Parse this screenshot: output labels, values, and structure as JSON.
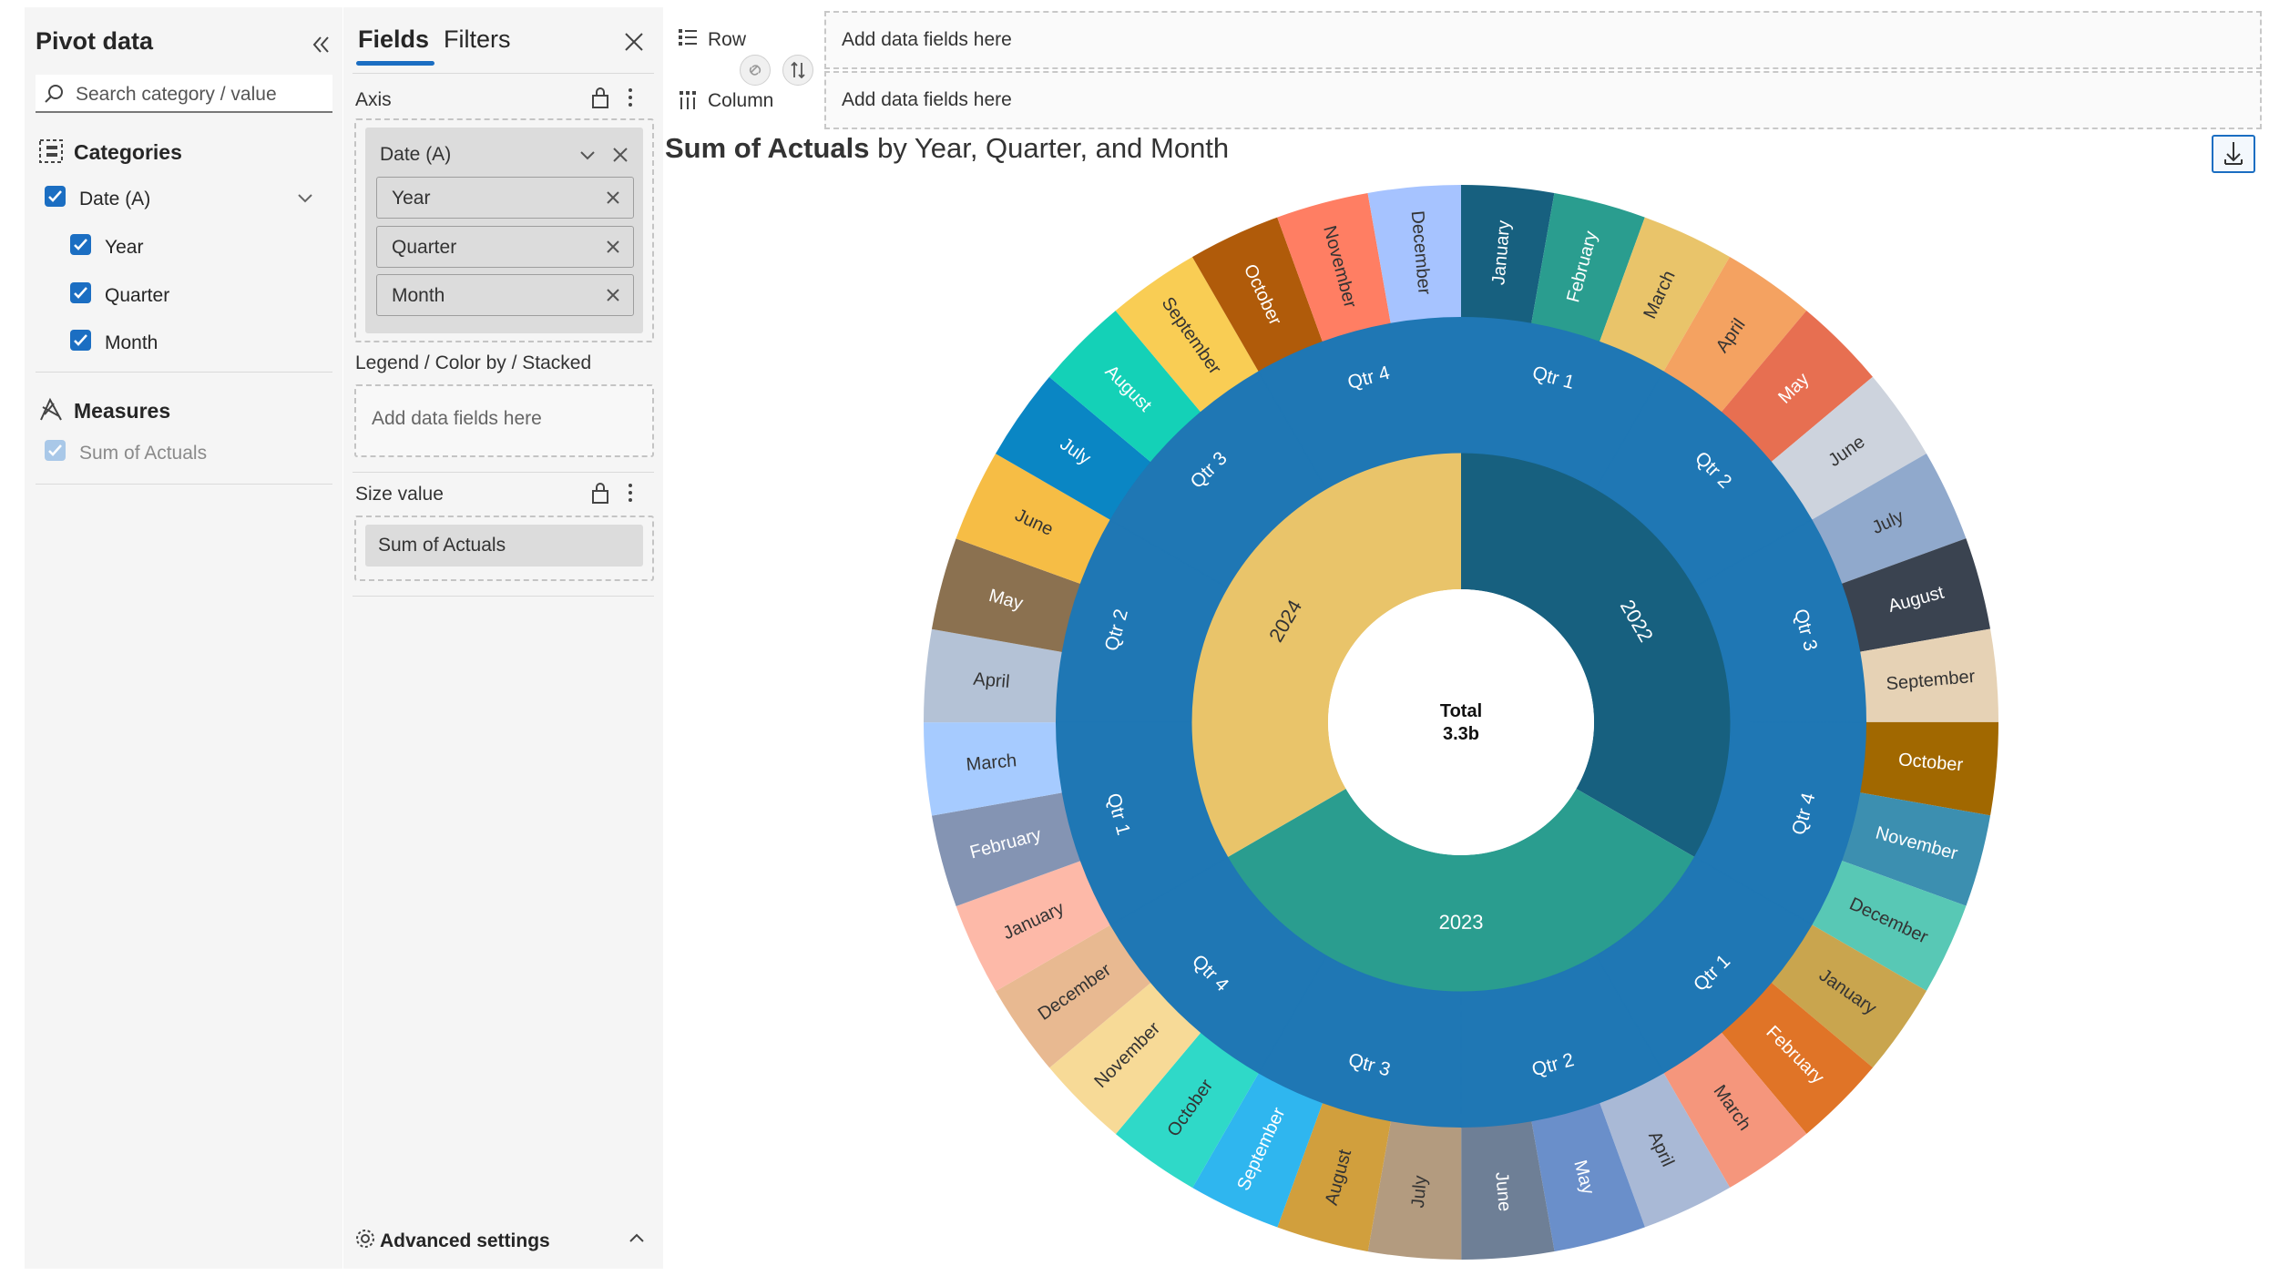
{
  "pivot_panel": {
    "title": "Pivot data",
    "search_placeholder": "Search category / value",
    "categories_heading": "Categories",
    "categories": [
      {
        "label": "Date (A)",
        "checked": true
      },
      {
        "label": "Year",
        "checked": true
      },
      {
        "label": "Quarter",
        "checked": true
      },
      {
        "label": "Month",
        "checked": true
      }
    ],
    "measures_heading": "Measures",
    "measures": [
      {
        "label": "Sum of Actuals",
        "checked": true,
        "disabled": true
      }
    ]
  },
  "fields_panel": {
    "tabs": [
      "Fields",
      "Filters"
    ],
    "active_tab": "Fields",
    "axis_label": "Axis",
    "axis_group": "Date (A)",
    "axis_fields": [
      "Year",
      "Quarter",
      "Month"
    ],
    "legend_label": "Legend / Color by / Stacked",
    "legend_placeholder": "Add data fields here",
    "size_label": "Size value",
    "size_field": "Sum of Actuals",
    "advanced_settings": "Advanced settings"
  },
  "wells": {
    "row_label": "Row",
    "row_placeholder": "Add data fields here",
    "column_label": "Column",
    "column_placeholder": "Add data fields here"
  },
  "colors": {
    "accent": "#1b6ec2",
    "quarter_ring": "#1f77b4"
  },
  "chart_data": {
    "type": "sunburst",
    "title_bold": "Sum of Actuals",
    "title_rest": " by Year, Quarter, and Month",
    "center_label": "Total",
    "center_value": "3.3b",
    "levels": [
      "Year",
      "Quarter",
      "Month"
    ],
    "years": [
      {
        "name": "2022",
        "color": "#17607f",
        "share": 0.3333,
        "quarters": [
          {
            "name": "Qtr 1",
            "months": [
              {
                "name": "January",
                "color": "#17607f",
                "value": 1
              },
              {
                "name": "February",
                "color": "#2a9d8f",
                "value": 1
              },
              {
                "name": "March",
                "color": "#e9c46a",
                "value": 1
              }
            ]
          },
          {
            "name": "Qtr 2",
            "months": [
              {
                "name": "April",
                "color": "#f4a261",
                "value": 1
              },
              {
                "name": "May",
                "color": "#e76f51",
                "value": 1
              },
              {
                "name": "June",
                "color": "#cdd3dd",
                "value": 1
              }
            ]
          },
          {
            "name": "Qtr 3",
            "months": [
              {
                "name": "July",
                "color": "#90a9cc",
                "value": 1
              },
              {
                "name": "August",
                "color": "#3a4350",
                "value": 1
              },
              {
                "name": "September",
                "color": "#e6d2b5",
                "value": 1
              }
            ]
          },
          {
            "name": "Qtr 4",
            "months": [
              {
                "name": "October",
                "color": "#a16800",
                "value": 1
              },
              {
                "name": "November",
                "color": "#3c8fb0",
                "value": 1
              },
              {
                "name": "December",
                "color": "#58c8b5",
                "value": 1
              }
            ]
          }
        ]
      },
      {
        "name": "2023",
        "color": "#2a9d8f",
        "share": 0.3333,
        "quarters": [
          {
            "name": "Qtr 1",
            "months": [
              {
                "name": "January",
                "color": "#c9a54e",
                "value": 1
              },
              {
                "name": "February",
                "color": "#e07427",
                "value": 1
              },
              {
                "name": "March",
                "color": "#f5967c",
                "value": 1
              }
            ]
          },
          {
            "name": "Qtr 2",
            "months": [
              {
                "name": "April",
                "color": "#a9b9d6",
                "value": 1
              },
              {
                "name": "May",
                "color": "#6a8fca",
                "value": 1
              },
              {
                "name": "June",
                "color": "#6e7f96",
                "value": 1
              }
            ]
          },
          {
            "name": "Qtr 3",
            "months": [
              {
                "name": "July",
                "color": "#b39b7f",
                "value": 1
              },
              {
                "name": "August",
                "color": "#d19f3d",
                "value": 1
              },
              {
                "name": "September",
                "color": "#2fb6ef",
                "value": 1
              }
            ]
          },
          {
            "name": "Qtr 4",
            "months": [
              {
                "name": "October",
                "color": "#2fd9c8",
                "value": 1
              },
              {
                "name": "November",
                "color": "#f7da97",
                "value": 1
              },
              {
                "name": "December",
                "color": "#e8b991",
                "value": 1
              }
            ]
          }
        ]
      },
      {
        "name": "2024",
        "color": "#e9c46a",
        "share": 0.3334,
        "quarters": [
          {
            "name": "Qtr 1",
            "months": [
              {
                "name": "January",
                "color": "#fdb9a8",
                "value": 1
              },
              {
                "name": "February",
                "color": "#8494b3",
                "value": 1
              },
              {
                "name": "March",
                "color": "#a6cbff",
                "value": 1
              }
            ]
          },
          {
            "name": "Qtr 2",
            "months": [
              {
                "name": "April",
                "color": "#b4c2d6",
                "value": 1
              },
              {
                "name": "May",
                "color": "#8b7150",
                "value": 1
              },
              {
                "name": "June",
                "color": "#f6bd45",
                "value": 1
              }
            ]
          },
          {
            "name": "Qtr 3",
            "months": [
              {
                "name": "July",
                "color": "#0a86c4",
                "value": 1
              },
              {
                "name": "August",
                "color": "#14d1b7",
                "value": 1
              },
              {
                "name": "September",
                "color": "#f9cd54",
                "value": 1
              }
            ]
          },
          {
            "name": "Qtr 4",
            "months": [
              {
                "name": "October",
                "color": "#b05b0a",
                "value": 1
              },
              {
                "name": "November",
                "color": "#ff7e63",
                "value": 1
              },
              {
                "name": "December",
                "color": "#a6c3ff",
                "value": 1
              }
            ]
          }
        ]
      }
    ]
  }
}
